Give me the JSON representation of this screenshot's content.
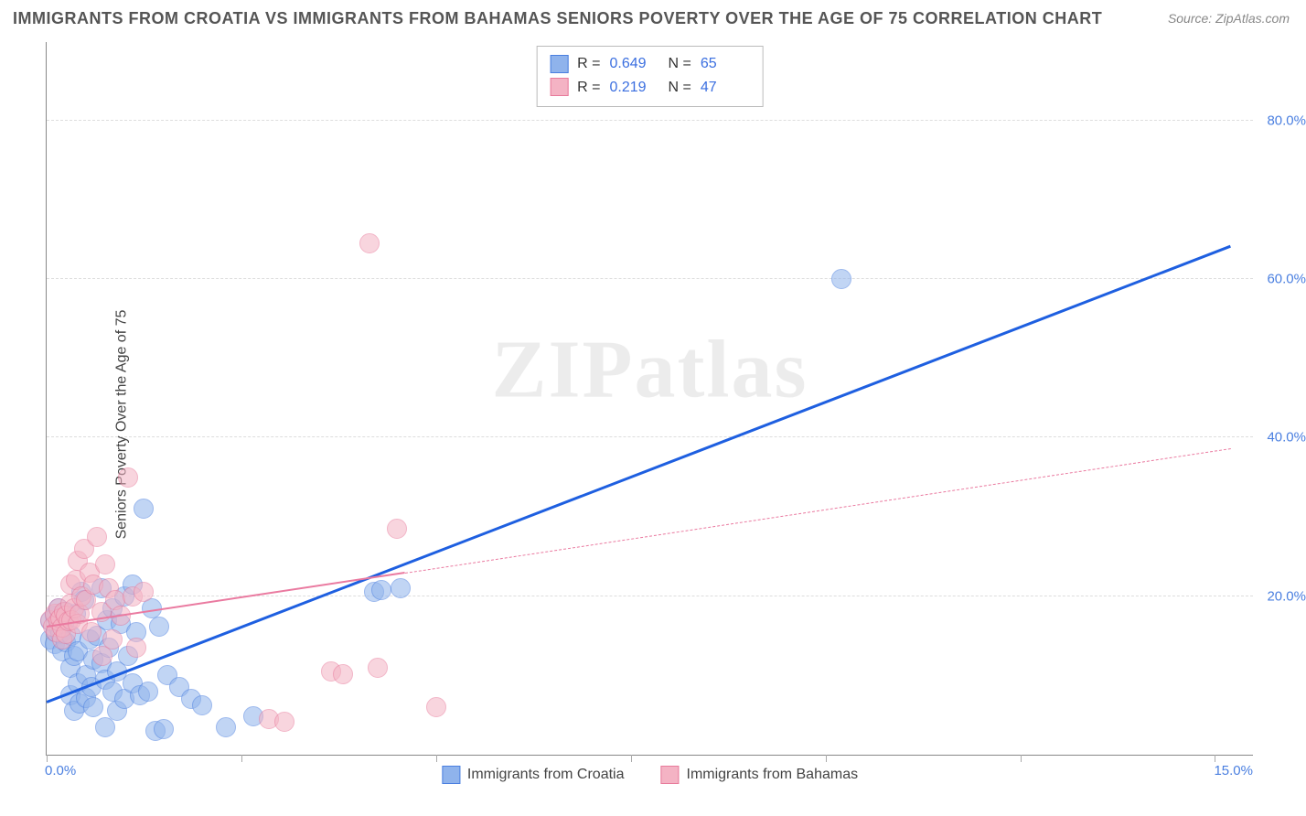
{
  "title": "IMMIGRANTS FROM CROATIA VS IMMIGRANTS FROM BAHAMAS SENIORS POVERTY OVER THE AGE OF 75 CORRELATION CHART",
  "source": "Source: ZipAtlas.com",
  "watermark_zip": "ZIP",
  "watermark_atlas": "atlas",
  "y_axis": {
    "label": "Seniors Poverty Over the Age of 75",
    "min": 0,
    "max": 90,
    "ticks": [
      {
        "v": 20,
        "label": "20.0%"
      },
      {
        "v": 40,
        "label": "40.0%"
      },
      {
        "v": 60,
        "label": "60.0%"
      },
      {
        "v": 80,
        "label": "80.0%"
      }
    ],
    "tick_color": "#4a7fe0",
    "grid_color": "#dddddd"
  },
  "x_axis": {
    "min": 0,
    "max": 15.5,
    "label_left": "0.0%",
    "label_right": "15.0%",
    "vticks_at": [
      0,
      2.5,
      5,
      7.5,
      10,
      12.5,
      15
    ],
    "tick_color": "#4a7fe0"
  },
  "series": [
    {
      "key": "croatia",
      "label": "Immigrants from Croatia",
      "color_fill": "#8fb3ec",
      "color_stroke": "#4a7fe0",
      "r_label": "R =",
      "r": "0.649",
      "n_label": "N =",
      "n": "65",
      "trend": {
        "x1": 0,
        "y1": 6.5,
        "x2": 15.2,
        "y2": 64,
        "solid_until_x": 15.2,
        "color": "#1e5fe0",
        "width": 3
      },
      "points": [
        [
          0.05,
          14.5
        ],
        [
          0.05,
          16.8
        ],
        [
          0.1,
          14
        ],
        [
          0.1,
          17.5
        ],
        [
          0.12,
          15.5
        ],
        [
          0.15,
          16
        ],
        [
          0.15,
          18.5
        ],
        [
          0.18,
          15.2
        ],
        [
          0.2,
          13
        ],
        [
          0.2,
          17
        ],
        [
          0.22,
          16.5
        ],
        [
          0.25,
          14.2
        ],
        [
          0.25,
          18
        ],
        [
          0.3,
          7.5
        ],
        [
          0.3,
          11
        ],
        [
          0.32,
          15
        ],
        [
          0.35,
          5.5
        ],
        [
          0.35,
          12.5
        ],
        [
          0.38,
          17.8
        ],
        [
          0.4,
          9
        ],
        [
          0.4,
          13
        ],
        [
          0.42,
          6.5
        ],
        [
          0.45,
          20.5
        ],
        [
          0.48,
          19.5
        ],
        [
          0.5,
          10
        ],
        [
          0.5,
          7.2
        ],
        [
          0.55,
          14.5
        ],
        [
          0.58,
          8.5
        ],
        [
          0.6,
          12
        ],
        [
          0.6,
          6
        ],
        [
          0.65,
          15
        ],
        [
          0.7,
          11.5
        ],
        [
          0.7,
          21
        ],
        [
          0.75,
          9.5
        ],
        [
          0.75,
          3.5
        ],
        [
          0.78,
          17
        ],
        [
          0.8,
          13.5
        ],
        [
          0.85,
          8
        ],
        [
          0.85,
          18.5
        ],
        [
          0.9,
          10.5
        ],
        [
          0.9,
          5.5
        ],
        [
          0.95,
          16.5
        ],
        [
          1.0,
          20
        ],
        [
          1.0,
          7
        ],
        [
          1.05,
          12.5
        ],
        [
          1.1,
          9
        ],
        [
          1.1,
          21.5
        ],
        [
          1.15,
          15.5
        ],
        [
          1.2,
          7.5
        ],
        [
          1.25,
          31
        ],
        [
          1.3,
          8
        ],
        [
          1.35,
          18.5
        ],
        [
          1.4,
          3
        ],
        [
          1.45,
          16.2
        ],
        [
          1.5,
          3.2
        ],
        [
          1.55,
          10
        ],
        [
          1.7,
          8.5
        ],
        [
          1.85,
          7
        ],
        [
          2.0,
          6.2
        ],
        [
          2.3,
          3.5
        ],
        [
          2.65,
          4.8
        ],
        [
          4.2,
          20.5
        ],
        [
          4.3,
          20.8
        ],
        [
          4.55,
          21
        ],
        [
          10.2,
          60
        ]
      ]
    },
    {
      "key": "bahamas",
      "label": "Immigrants from Bahamas",
      "color_fill": "#f4b3c4",
      "color_stroke": "#e87a9b",
      "r_label": "R =",
      "r": "0.219",
      "n_label": "N =",
      "n": "47",
      "trend": {
        "x1": 0,
        "y1": 16,
        "x2": 15.2,
        "y2": 38.5,
        "solid_until_x": 4.6,
        "color": "#ea7aa0",
        "width": 2.5
      },
      "points": [
        [
          0.05,
          17
        ],
        [
          0.08,
          16.2
        ],
        [
          0.1,
          17.8
        ],
        [
          0.12,
          15.5
        ],
        [
          0.15,
          16.8
        ],
        [
          0.15,
          18.5
        ],
        [
          0.18,
          17.2
        ],
        [
          0.2,
          14.5
        ],
        [
          0.2,
          16
        ],
        [
          0.22,
          18
        ],
        [
          0.25,
          15.2
        ],
        [
          0.25,
          17.5
        ],
        [
          0.28,
          16.8
        ],
        [
          0.3,
          19
        ],
        [
          0.3,
          21.5
        ],
        [
          0.32,
          17
        ],
        [
          0.35,
          18.5
        ],
        [
          0.38,
          22
        ],
        [
          0.4,
          16.5
        ],
        [
          0.4,
          24.5
        ],
        [
          0.42,
          17.8
        ],
        [
          0.45,
          20
        ],
        [
          0.48,
          26
        ],
        [
          0.5,
          19.5
        ],
        [
          0.55,
          23
        ],
        [
          0.58,
          15.5
        ],
        [
          0.6,
          21.5
        ],
        [
          0.65,
          27.5
        ],
        [
          0.7,
          18
        ],
        [
          0.72,
          12.5
        ],
        [
          0.75,
          24
        ],
        [
          0.8,
          21
        ],
        [
          0.85,
          14.5
        ],
        [
          0.88,
          19.5
        ],
        [
          0.95,
          17.5
        ],
        [
          1.05,
          35
        ],
        [
          1.1,
          20
        ],
        [
          1.15,
          13.5
        ],
        [
          1.25,
          20.5
        ],
        [
          2.85,
          4.5
        ],
        [
          3.05,
          4.2
        ],
        [
          3.65,
          10.5
        ],
        [
          3.8,
          10.2
        ],
        [
          4.15,
          64.5
        ],
        [
          4.25,
          11
        ],
        [
          4.5,
          28.5
        ],
        [
          5.0,
          6
        ]
      ]
    }
  ],
  "legend": {
    "stats_box_border": "#bbbbbb",
    "swatch_size": 20
  },
  "styling": {
    "background": "#ffffff",
    "title_fontsize": 18,
    "title_color": "#555555",
    "source_color": "#888888",
    "point_diameter": 22,
    "point_opacity": 0.55,
    "axis_color": "#888888"
  }
}
